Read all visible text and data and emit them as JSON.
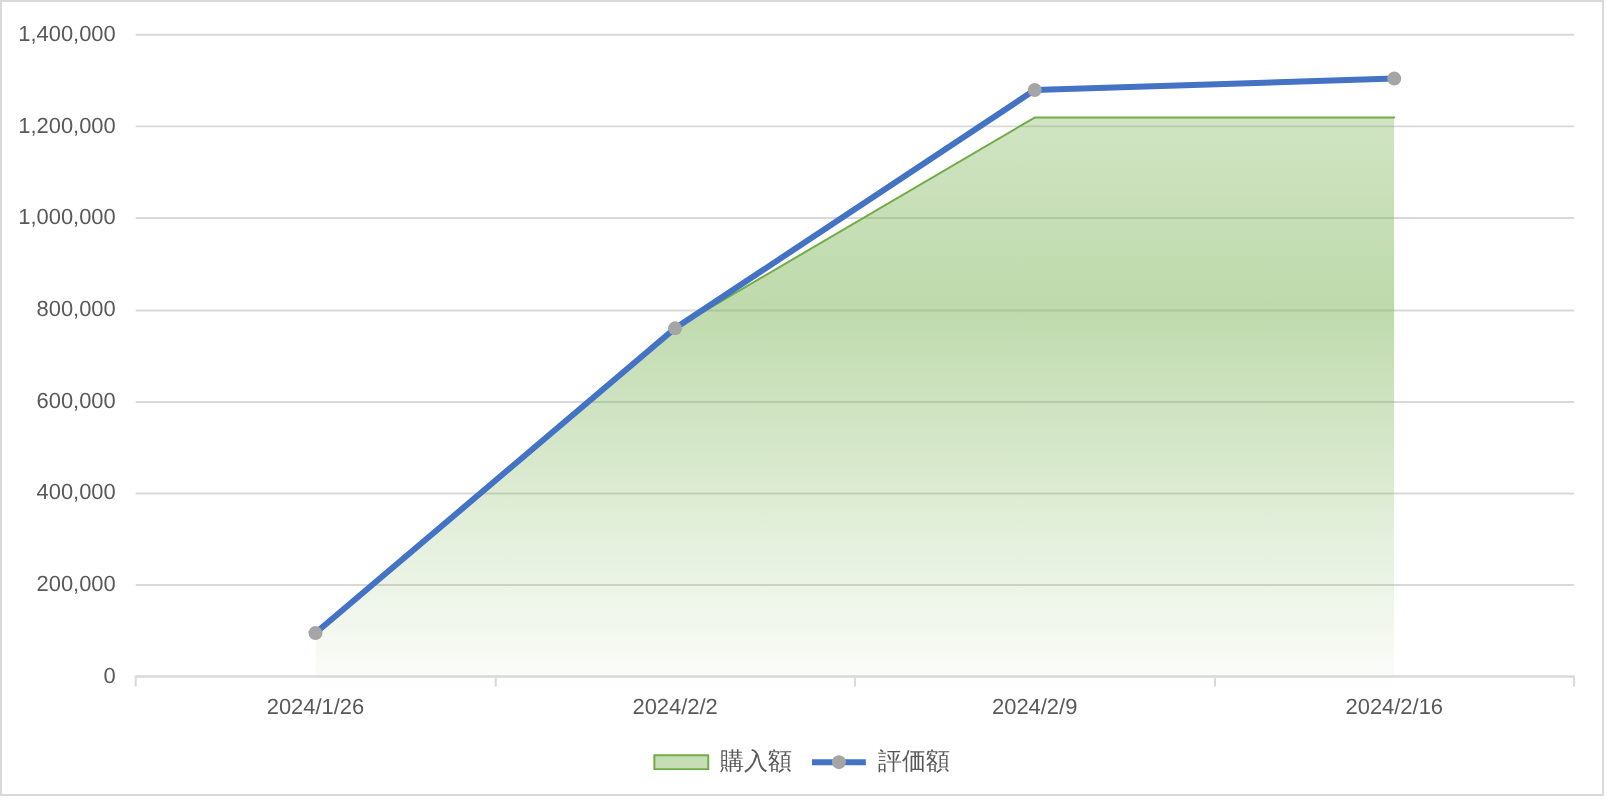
{
  "chart_data": {
    "type": "area",
    "categories": [
      "2024/1/26",
      "2024/2/2",
      "2024/2/9",
      "2024/2/16"
    ],
    "series": [
      {
        "name": "購入額",
        "color": "#70ad47",
        "marker": "none",
        "values": [
          95000,
          760000,
          1220000,
          1220000
        ]
      },
      {
        "name": "評価額",
        "type": "line",
        "color": "#4472c4",
        "colors": [
          "#a5a5a5",
          "#a5a5a5",
          "#a5a5a5",
          "#a5a5a5"
        ],
        "marker": "circle",
        "values": [
          95000,
          760000,
          1280000,
          1305000
        ]
      }
    ],
    "ylim": [
      0,
      1400000
    ],
    "yticks": [
      0,
      {
        "value": 200000,
        "label": "200,000"
      },
      {
        "value": 400000,
        "label": "400,000"
      },
      {
        "value": 600000,
        "label": "600,000"
      },
      {
        "value": 800000,
        "label": "800,000"
      },
      {
        "value": 1000000,
        "label": "1,000,000"
      },
      {
        "value": 1200000,
        "label": "1,200,000"
      },
      {
        "value": 1400000,
        "label": "1,400,000"
      }
    ],
    "grid": "y",
    "legend": "bottom"
  }
}
